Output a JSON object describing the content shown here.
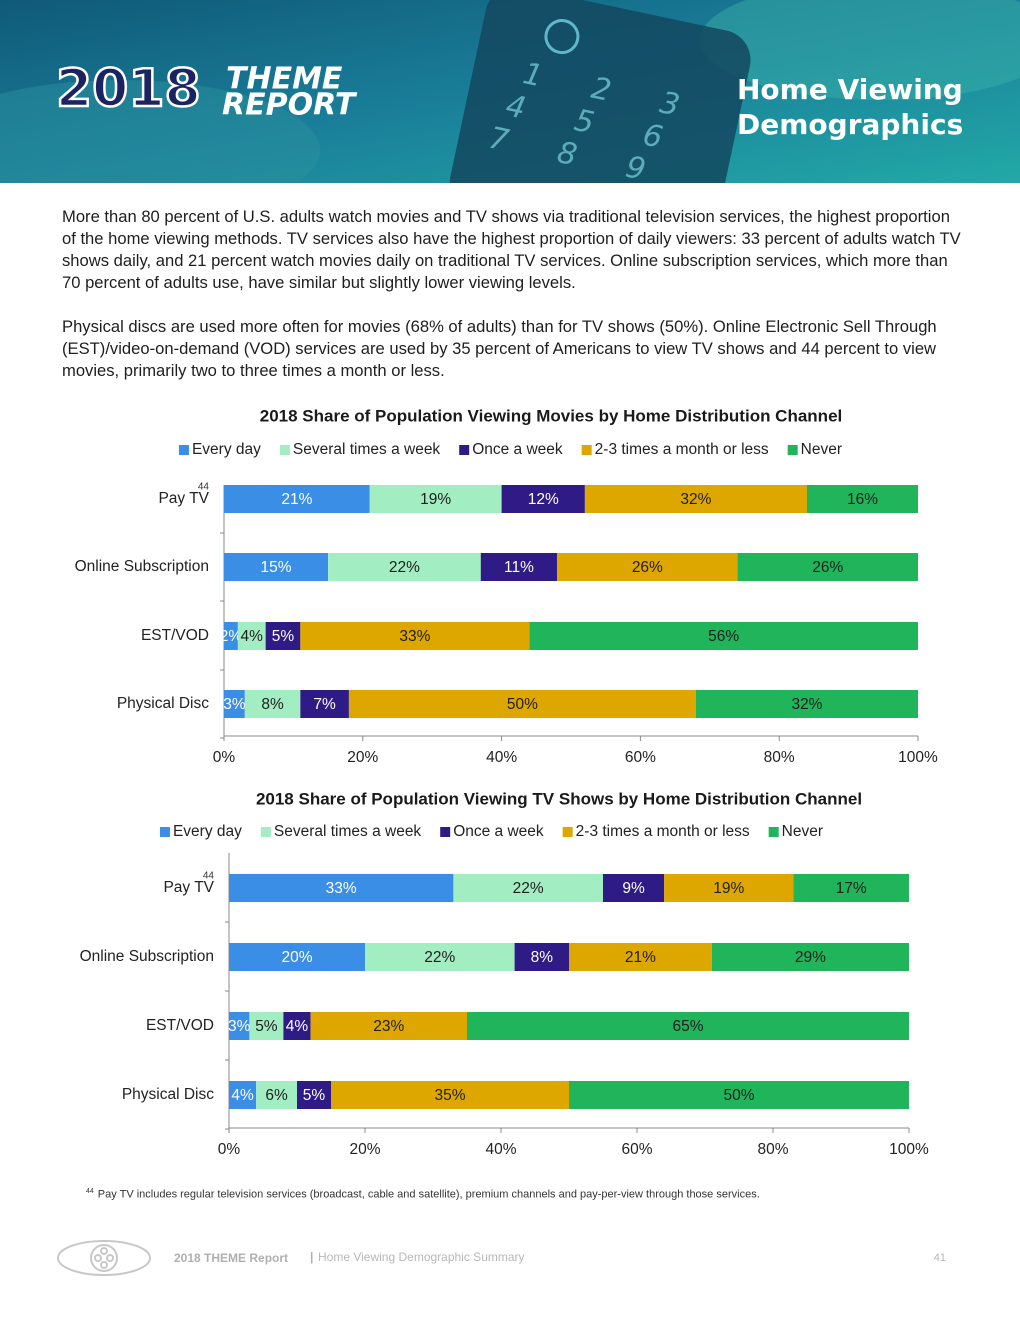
{
  "header": {
    "logo_year": "2018",
    "logo_theme": "THEME",
    "logo_report": "REPORT",
    "title_line1": "Home Viewing",
    "title_line2": "Demographics"
  },
  "paragraphs": [
    "More than 80 percent of U.S. adults watch movies and TV shows via traditional television services, the highest proportion of the home viewing methods. TV services also have the highest proportion of daily viewers: 33 percent of adults watch TV shows daily, and 21 percent watch movies daily on traditional TV services. Online subscription services, which more than 70 percent of adults use, have similar but slightly lower viewing levels.",
    "Physical discs are used more often for movies (68% of adults) than for TV shows (50%). Online Electronic Sell Through (EST)/video-on-demand (VOD) services are used by 35 percent of Americans to view TV shows and 44 percent to view movies, primarily two to three times a month or less."
  ],
  "chart_data": [
    {
      "type": "bar",
      "orientation": "horizontal",
      "stacked": true,
      "title": "2018 Share of Population Viewing Movies by Home Distribution Channel",
      "categories": [
        "Pay TV",
        "Online Subscription",
        "EST/VOD",
        "Physical Disc"
      ],
      "annotations": [
        {
          "text": "44",
          "category": "Pay TV"
        }
      ],
      "series": [
        {
          "name": "Every day",
          "color": "#3b8ee6",
          "values": [
            21,
            15,
            2,
            3
          ],
          "value_labels": [
            "21%",
            "15%",
            "2%",
            "3%"
          ]
        },
        {
          "name": "Several times a week",
          "color": "#a3edc3",
          "values": [
            19,
            22,
            4,
            8
          ],
          "value_labels": [
            "19%",
            "22%",
            "4%",
            "8%"
          ]
        },
        {
          "name": "Once a week",
          "color": "#2f1b86",
          "values": [
            12,
            11,
            5,
            7
          ],
          "value_labels": [
            "12%",
            "11%",
            "5%",
            "7%"
          ]
        },
        {
          "name": "2-3 times a month or less",
          "color": "#dea700",
          "values": [
            32,
            26,
            33,
            50
          ],
          "value_labels": [
            "32%",
            "26%",
            "33%",
            "50%"
          ]
        },
        {
          "name": "Never",
          "color": "#20b45b",
          "values": [
            16,
            26,
            56,
            32
          ],
          "value_labels": [
            "16%",
            "26%",
            "56%",
            "32%"
          ]
        }
      ],
      "xlim": [
        0,
        100
      ],
      "xticks": [
        {
          "value": 0,
          "label": "0%"
        },
        {
          "value": 20,
          "label": "20%"
        },
        {
          "value": 40,
          "label": "40%"
        },
        {
          "value": 60,
          "label": "60%"
        },
        {
          "value": 80,
          "label": "80%"
        },
        {
          "value": 100,
          "label": "100%"
        }
      ],
      "legend": "top"
    },
    {
      "type": "bar",
      "orientation": "horizontal",
      "stacked": true,
      "title": "2018 Share of Population Viewing TV Shows by Home Distribution Channel",
      "categories": [
        "Pay TV",
        "Online Subscription",
        "EST/VOD",
        "Physical Disc"
      ],
      "annotations": [
        {
          "text": "44",
          "category": "Pay TV"
        }
      ],
      "series": [
        {
          "name": "Every day",
          "color": "#3b8ee6",
          "values": [
            33,
            20,
            3,
            4
          ],
          "value_labels": [
            "33%",
            "20%",
            "3%",
            "4%"
          ]
        },
        {
          "name": "Several times a week",
          "color": "#a3edc3",
          "values": [
            22,
            22,
            5,
            6
          ],
          "value_labels": [
            "22%",
            "22%",
            "5%",
            "6%"
          ]
        },
        {
          "name": "Once a week",
          "color": "#2f1b86",
          "values": [
            9,
            8,
            4,
            5
          ],
          "value_labels": [
            "9%",
            "8%",
            "4%",
            "5%"
          ]
        },
        {
          "name": "2-3 times a month or less",
          "color": "#dea700",
          "values": [
            19,
            21,
            23,
            35
          ],
          "value_labels": [
            "19%",
            "21%",
            "23%",
            "35%"
          ]
        },
        {
          "name": "Never",
          "color": "#20b45b",
          "values": [
            17,
            29,
            65,
            50
          ],
          "value_labels": [
            "17%",
            "29%",
            "65%",
            "50%"
          ]
        }
      ],
      "xlim": [
        0,
        100
      ],
      "xticks": [
        {
          "value": 0,
          "label": "0%"
        },
        {
          "value": 20,
          "label": "20%"
        },
        {
          "value": 40,
          "label": "40%"
        },
        {
          "value": 60,
          "label": "60%"
        },
        {
          "value": 80,
          "label": "80%"
        },
        {
          "value": 100,
          "label": "100%"
        }
      ],
      "legend": "top"
    }
  ],
  "footnote": {
    "marker": "44",
    "text": "Pay TV includes regular television services (broadcast, cable and satellite), premium channels and pay-per-view through those services."
  },
  "footer": {
    "brand": "2018 THEME Report",
    "separator": "|",
    "section": "Home Viewing Demographic Summary",
    "page": "41"
  }
}
